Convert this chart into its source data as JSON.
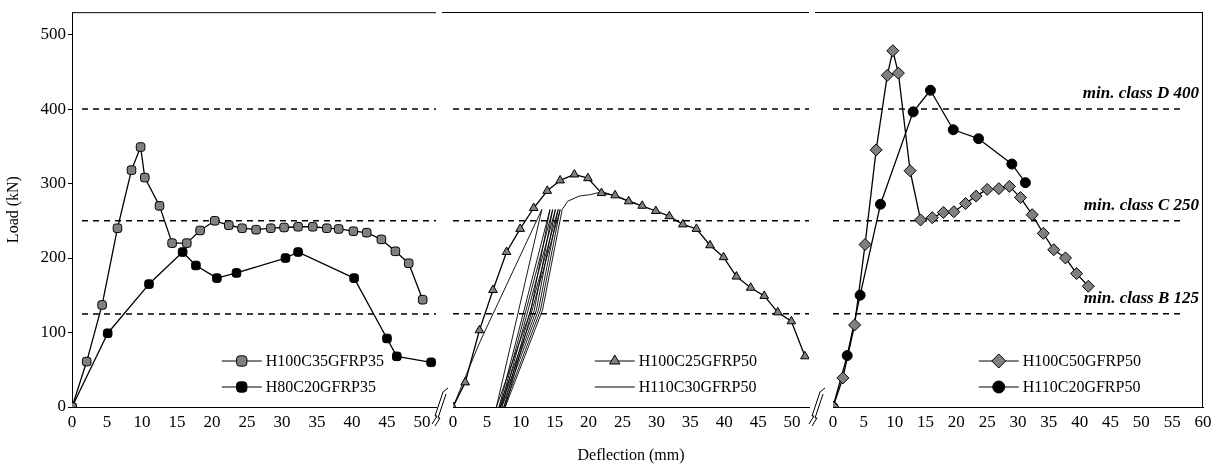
{
  "chart_data": [
    {
      "type": "line",
      "ylabel": "Load (kN)",
      "xlim": [
        0,
        52
      ],
      "xticks": [
        0,
        5,
        10,
        15,
        20,
        25,
        30,
        35,
        40,
        45,
        50
      ],
      "ylim": [
        0,
        530
      ],
      "yticks": [
        0,
        100,
        200,
        300,
        400,
        500
      ],
      "legend": "bottom right",
      "ref_lines": [
        {
          "axis": "y",
          "value": 400,
          "line_style": "dashed"
        },
        {
          "axis": "y",
          "value": 250,
          "line_style": "dashed"
        },
        {
          "axis": "y",
          "value": 125,
          "line_style": "dashed"
        }
      ],
      "series": [
        {
          "name": "H100C35GFRP35",
          "color": "#808080",
          "marker": "square",
          "x": [
            0,
            2.1,
            4.3,
            6.5,
            8.5,
            9.8,
            10.4,
            12.5,
            14.3,
            16.4,
            18.3,
            20.4,
            22.4,
            24.3,
            26.3,
            28.4,
            30.3,
            32.3,
            34.4,
            36.4,
            38.1,
            40.2,
            42.1,
            44.2,
            46.2,
            48.1,
            50.1
          ],
          "values": [
            0,
            61,
            137,
            240,
            318,
            349,
            308,
            270,
            220,
            220,
            237,
            250,
            244,
            240,
            238,
            240,
            241,
            242,
            242,
            240,
            239,
            236,
            234,
            225,
            209,
            193,
            144
          ]
        },
        {
          "name": "H80C20GFRP35",
          "color": "#000000",
          "marker": "square",
          "x": [
            0,
            5.1,
            11.0,
            15.8,
            17.7,
            20.7,
            23.5,
            30.5,
            32.3,
            40.3,
            45.0,
            46.4,
            51.3
          ],
          "values": [
            0,
            99,
            165,
            208,
            190,
            173,
            180,
            200,
            208,
            173,
            92,
            68,
            60
          ]
        }
      ]
    },
    {
      "type": "line",
      "xlabel": "Deflection (mm)",
      "xlim": [
        0,
        52.5
      ],
      "xticks": [
        0,
        5,
        10,
        15,
        20,
        25,
        30,
        35,
        40,
        45,
        50
      ],
      "ylim": [
        0,
        530
      ],
      "tick_labels": "x",
      "legend": "bottom right",
      "ref_lines": [
        {
          "axis": "y",
          "value": 400,
          "line_style": "dashed"
        },
        {
          "axis": "y",
          "value": 250,
          "line_style": "dashed"
        },
        {
          "axis": "y",
          "value": 125,
          "line_style": "dashed"
        }
      ],
      "series": [
        {
          "name": "H100C25GFRP50",
          "color": "#808080",
          "marker": "triangle",
          "x": [
            0,
            1.8,
            3.9,
            5.9,
            7.9,
            9.9,
            11.9,
            13.9,
            15.8,
            17.9,
            19.9,
            21.9,
            23.9,
            25.9,
            27.9,
            29.9,
            31.9,
            33.9,
            35.9,
            37.9,
            39.9,
            41.8,
            43.9,
            45.9,
            47.9,
            49.9,
            51.9
          ],
          "values": [
            0,
            33,
            103,
            157,
            208,
            239,
            267,
            290,
            304,
            312,
            307,
            287,
            284,
            276,
            270,
            263,
            256,
            245,
            239,
            217,
            201,
            175,
            160,
            149,
            127,
            115,
            68
          ]
        },
        {
          "name": "H110C30GFRP50",
          "color": "#000000",
          "marker": "none",
          "x": [
            0,
            3.9,
            13.1,
            6.4,
            11.5,
            14.3,
            6.8,
            12.0,
            14.7,
            7.0,
            12.3,
            15.1,
            7.2,
            12.6,
            15.5,
            7.5,
            12.9,
            15.8,
            7.7,
            13.2,
            16.1,
            16.9,
            18.6,
            20.3,
            22.0,
            24.2,
            27.1
          ],
          "values": [
            0,
            86,
            265,
            0,
            130,
            265,
            0,
            130,
            265,
            0,
            130,
            265,
            0,
            130,
            265,
            0,
            130,
            265,
            0,
            130,
            265,
            276,
            283,
            285,
            289,
            282,
            273
          ]
        }
      ]
    },
    {
      "type": "line",
      "xlim": [
        0,
        60
      ],
      "xticks": [
        0,
        5,
        10,
        15,
        20,
        25,
        30,
        35,
        40,
        45,
        50,
        55,
        60
      ],
      "ylim": [
        0,
        530
      ],
      "tick_labels": "x",
      "legend": "bottom right",
      "ref_lines": [
        {
          "axis": "y",
          "value": 400,
          "label": "min. class D 400",
          "line_style": "dashed"
        },
        {
          "axis": "y",
          "value": 250,
          "label": "min. class C 250",
          "line_style": "dashed"
        },
        {
          "axis": "y",
          "value": 125,
          "label": "min. class B 125",
          "line_style": "dashed"
        }
      ],
      "series": [
        {
          "name": "H100C50GFRP50",
          "color": "#808080",
          "marker": "diamond",
          "x": [
            0,
            1.6,
            3.5,
            5.2,
            7.0,
            8.8,
            9.7,
            10.6,
            12.5,
            14.2,
            16.1,
            17.9,
            19.6,
            21.5,
            23.2,
            25.0,
            26.9,
            28.6,
            30.4,
            32.3,
            34.1,
            35.8,
            37.7,
            39.5,
            41.4
          ],
          "values": [
            0,
            39,
            110,
            218,
            345,
            445,
            478,
            448,
            317,
            251,
            254,
            261,
            262,
            273,
            283,
            292,
            293,
            296,
            281,
            258,
            233,
            211,
            200,
            179,
            162
          ]
        },
        {
          "name": "H110C20GFRP50",
          "color": "#000000",
          "marker": "circle",
          "x": [
            0,
            2.3,
            4.4,
            7.7,
            13.0,
            15.8,
            19.5,
            23.6,
            29.0,
            31.2
          ],
          "values": [
            0,
            69,
            150,
            272,
            396,
            425,
            372,
            360,
            326,
            301
          ]
        }
      ]
    }
  ]
}
